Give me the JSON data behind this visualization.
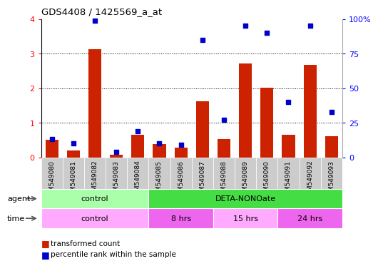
{
  "title": "GDS4408 / 1425569_a_at",
  "samples": [
    "GSM549080",
    "GSM549081",
    "GSM549082",
    "GSM549083",
    "GSM549084",
    "GSM549085",
    "GSM549086",
    "GSM549087",
    "GSM549088",
    "GSM549089",
    "GSM549090",
    "GSM549091",
    "GSM549092",
    "GSM549093"
  ],
  "red_values": [
    0.5,
    0.2,
    3.13,
    0.07,
    0.65,
    0.38,
    0.28,
    1.62,
    0.52,
    2.72,
    2.02,
    0.65,
    2.68,
    0.6
  ],
  "blue_pct": [
    13,
    10,
    99,
    4,
    19,
    10,
    9,
    85,
    27,
    95,
    90,
    40,
    95,
    33
  ],
  "ylim_left": [
    0,
    4
  ],
  "ylim_right": [
    0,
    100
  ],
  "yticks_left": [
    0,
    1,
    2,
    3,
    4
  ],
  "yticks_right": [
    0,
    25,
    50,
    75,
    100
  ],
  "agent_groups": [
    {
      "label": "control",
      "start": 0,
      "end": 5,
      "color": "#aaffaa"
    },
    {
      "label": "DETA-NONOate",
      "start": 5,
      "end": 14,
      "color": "#44dd44"
    }
  ],
  "time_groups": [
    {
      "label": "control",
      "start": 0,
      "end": 5,
      "color": "#ffaaff"
    },
    {
      "label": "8 hrs",
      "start": 5,
      "end": 8,
      "color": "#ee66ee"
    },
    {
      "label": "15 hrs",
      "start": 8,
      "end": 11,
      "color": "#ffaaff"
    },
    {
      "label": "24 hrs",
      "start": 11,
      "end": 14,
      "color": "#ee66ee"
    }
  ],
  "bar_color": "#cc2200",
  "dot_color": "#0000cc",
  "tick_bg_color": "#cccccc",
  "legend_red": "transformed count",
  "legend_blue": "percentile rank within the sample",
  "agent_label": "agent",
  "time_label": "time"
}
